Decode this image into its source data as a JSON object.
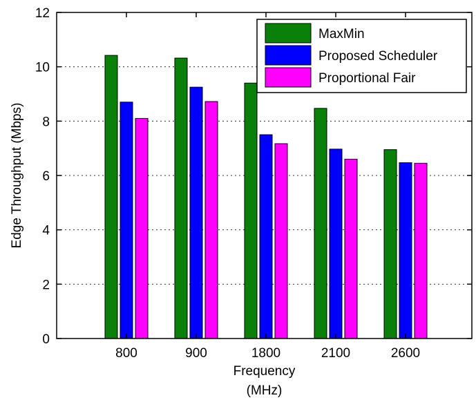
{
  "chart_data": {
    "type": "bar",
    "title": "",
    "xlabel_lines": [
      "Frequency",
      "(MHz)"
    ],
    "ylabel": "Edge Throughput (Mbps)",
    "categories": [
      "800",
      "900",
      "1800",
      "2100",
      "2600"
    ],
    "series": [
      {
        "name": "MaxMin",
        "color": "#0a800a",
        "values": [
          10.42,
          10.32,
          9.4,
          8.47,
          6.95
        ]
      },
      {
        "name": "Proposed Scheduler",
        "color": "#0000ff",
        "values": [
          8.7,
          9.25,
          7.5,
          6.97,
          6.47
        ]
      },
      {
        "name": "Proportional Fair",
        "color": "#ff00ff",
        "values": [
          8.1,
          8.72,
          7.17,
          6.6,
          6.45
        ]
      }
    ],
    "ylim": [
      0,
      12
    ],
    "yticks": [
      "0",
      "2",
      "4",
      "6",
      "8",
      "10",
      "12"
    ],
    "grid": "y-dotted",
    "legend_position": "top-right"
  }
}
